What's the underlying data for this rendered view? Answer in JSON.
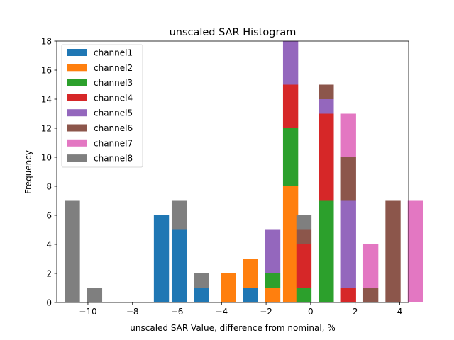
{
  "chart_data": {
    "type": "bar",
    "stacked": true,
    "title": "unscaled SAR Histogram",
    "xlabel": "unscaled SAR Value, difference from nominal, %",
    "ylabel": "Frequency",
    "xlim": [
      -11.4,
      4.4
    ],
    "ylim": [
      0,
      18
    ],
    "xticks": [
      -10,
      -8,
      -6,
      -4,
      -2,
      0,
      2,
      4
    ],
    "yticks": [
      0,
      2,
      4,
      6,
      8,
      10,
      12,
      14,
      16,
      18
    ],
    "bar_width": 0.68,
    "grid": false,
    "legend_position": "top-left",
    "series": [
      {
        "name": "channel1",
        "color": "#1f77b4",
        "bars": [
          {
            "x": -6.7,
            "bottom": 0,
            "top": 6
          },
          {
            "x": -5.9,
            "bottom": 0,
            "top": 5
          },
          {
            "x": -4.9,
            "bottom": 0,
            "top": 1
          },
          {
            "x": -2.7,
            "bottom": 0,
            "top": 1
          }
        ]
      },
      {
        "name": "channel2",
        "color": "#ff7f0e",
        "bars": [
          {
            "x": -3.7,
            "bottom": 0,
            "top": 2
          },
          {
            "x": -2.7,
            "bottom": 1,
            "top": 3
          },
          {
            "x": -1.7,
            "bottom": 0,
            "top": 1
          },
          {
            "x": -0.9,
            "bottom": 0,
            "top": 8
          }
        ]
      },
      {
        "name": "channel3",
        "color": "#2ca02c",
        "bars": [
          {
            "x": -1.7,
            "bottom": 1,
            "top": 2
          },
          {
            "x": -0.9,
            "bottom": 8,
            "top": 12
          },
          {
            "x": -0.3,
            "bottom": 0,
            "top": 1
          },
          {
            "x": 0.7,
            "bottom": 0,
            "top": 7
          }
        ]
      },
      {
        "name": "channel4",
        "color": "#d62728",
        "bars": [
          {
            "x": -0.9,
            "bottom": 12,
            "top": 15
          },
          {
            "x": -0.3,
            "bottom": 1,
            "top": 4
          },
          {
            "x": 0.7,
            "bottom": 7,
            "top": 13
          },
          {
            "x": 1.7,
            "bottom": 0,
            "top": 1
          }
        ]
      },
      {
        "name": "channel5",
        "color": "#9467bd",
        "bars": [
          {
            "x": -1.7,
            "bottom": 2,
            "top": 5
          },
          {
            "x": -0.9,
            "bottom": 15,
            "top": 18
          },
          {
            "x": 0.7,
            "bottom": 13,
            "top": 14
          },
          {
            "x": 1.7,
            "bottom": 1,
            "top": 7
          }
        ]
      },
      {
        "name": "channel6",
        "color": "#8c564b",
        "bars": [
          {
            "x": -0.3,
            "bottom": 4,
            "top": 5
          },
          {
            "x": 0.7,
            "bottom": 14,
            "top": 15
          },
          {
            "x": 1.7,
            "bottom": 7,
            "top": 10
          },
          {
            "x": 2.7,
            "bottom": 0,
            "top": 1
          },
          {
            "x": 3.7,
            "bottom": 0,
            "top": 7
          }
        ]
      },
      {
        "name": "channel7",
        "color": "#e377c2",
        "bars": [
          {
            "x": 1.7,
            "bottom": 10,
            "top": 13
          },
          {
            "x": 2.7,
            "bottom": 1,
            "top": 4
          },
          {
            "x": 4.7,
            "bottom": 0,
            "top": 7
          }
        ]
      },
      {
        "name": "channel8",
        "color": "#7f7f7f",
        "bars": [
          {
            "x": -10.7,
            "bottom": 0,
            "top": 7
          },
          {
            "x": -9.7,
            "bottom": 0,
            "top": 1
          },
          {
            "x": -5.9,
            "bottom": 5,
            "top": 7
          },
          {
            "x": -4.9,
            "bottom": 1,
            "top": 2
          },
          {
            "x": -0.3,
            "bottom": 5,
            "top": 6
          }
        ]
      }
    ]
  }
}
